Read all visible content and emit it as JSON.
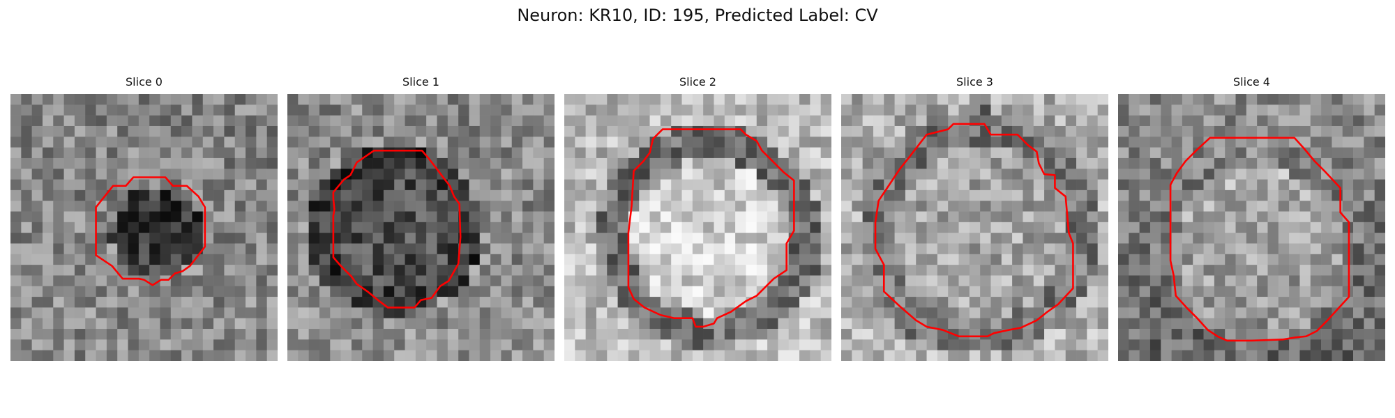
{
  "title": "Neuron: KR10, ID: 195, Predicted Label: CV",
  "contour_color": "#ff0000",
  "panels": [
    {
      "title": "Slice 0",
      "base_gray": 135,
      "disk_gray": 60,
      "ring_gray": 0,
      "contour": [
        [
          12.5,
          7.8
        ],
        [
          14.5,
          7.8
        ],
        [
          15.2,
          8.6
        ],
        [
          16.5,
          8.6
        ],
        [
          17.6,
          9.6
        ],
        [
          18.2,
          10.6
        ],
        [
          18.2,
          14.3
        ],
        [
          17.5,
          15.2
        ],
        [
          16.8,
          16.1
        ],
        [
          16.1,
          16.6
        ],
        [
          15.4,
          16.8
        ],
        [
          14.8,
          17.4
        ],
        [
          14.1,
          17.4
        ],
        [
          13.3,
          17.9
        ],
        [
          12.5,
          17.4
        ],
        [
          12.0,
          17.3
        ],
        [
          10.5,
          17.3
        ],
        [
          9.5,
          16.1
        ],
        [
          8.0,
          15.1
        ],
        [
          8.0,
          10.6
        ],
        [
          9.6,
          8.6
        ],
        [
          10.8,
          8.6
        ],
        [
          11.5,
          7.8
        ]
      ]
    },
    {
      "title": "Slice 1",
      "base_gray": 140,
      "disk_gray": 80,
      "ring_gray": 55,
      "contour": [
        [
          8.1,
          5.3
        ],
        [
          12.6,
          5.3
        ],
        [
          13.2,
          6.0
        ],
        [
          13.9,
          6.9
        ],
        [
          14.5,
          7.7
        ],
        [
          15.2,
          8.6
        ],
        [
          15.6,
          9.6
        ],
        [
          16.1,
          10.3
        ],
        [
          16.2,
          13.4
        ],
        [
          16.0,
          15.9
        ],
        [
          15.1,
          17.5
        ],
        [
          14.3,
          18.0
        ],
        [
          13.5,
          19.1
        ],
        [
          12.5,
          19.3
        ],
        [
          11.9,
          20.0
        ],
        [
          9.4,
          20.0
        ],
        [
          8.6,
          19.4
        ],
        [
          7.5,
          18.5
        ],
        [
          6.5,
          17.8
        ],
        [
          6.0,
          17.1
        ],
        [
          5.0,
          16.1
        ],
        [
          4.3,
          15.3
        ],
        [
          4.3,
          11.4
        ],
        [
          4.4,
          10.8
        ],
        [
          4.3,
          9.8
        ],
        [
          4.3,
          9.2
        ],
        [
          5.3,
          8.0
        ],
        [
          5.9,
          7.6
        ],
        [
          6.5,
          6.4
        ]
      ]
    },
    {
      "title": "Slice 2",
      "base_gray": 185,
      "disk_gray": 205,
      "ring_gray": 110,
      "contour": [
        [
          9.2,
          3.3
        ],
        [
          16.5,
          3.3
        ],
        [
          17.0,
          3.8
        ],
        [
          18.0,
          4.4
        ],
        [
          18.5,
          5.3
        ],
        [
          19.5,
          6.3
        ],
        [
          20.5,
          7.3
        ],
        [
          21.5,
          8.1
        ],
        [
          21.5,
          12.8
        ],
        [
          20.8,
          14.0
        ],
        [
          20.8,
          16.5
        ],
        [
          19.6,
          17.3
        ],
        [
          18.0,
          18.9
        ],
        [
          17.0,
          19.4
        ],
        [
          15.6,
          20.4
        ],
        [
          14.3,
          21.0
        ],
        [
          14.0,
          21.5
        ],
        [
          13.0,
          21.8
        ],
        [
          12.3,
          21.8
        ],
        [
          12.0,
          21.0
        ],
        [
          10.3,
          21.0
        ],
        [
          9.0,
          20.7
        ],
        [
          7.5,
          20.0
        ],
        [
          6.5,
          19.2
        ],
        [
          6.0,
          18.1
        ],
        [
          6.0,
          13.0
        ],
        [
          6.3,
          10.5
        ],
        [
          6.5,
          7.2
        ],
        [
          7.4,
          6.3
        ],
        [
          8.0,
          5.5
        ],
        [
          8.3,
          4.2
        ]
      ]
    },
    {
      "title": "Slice 3",
      "base_gray": 175,
      "disk_gray": 165,
      "ring_gray": 120,
      "contour": [
        [
          8.0,
          3.8
        ],
        [
          10.0,
          3.3
        ],
        [
          10.5,
          2.8
        ],
        [
          13.4,
          2.8
        ],
        [
          14.0,
          3.8
        ],
        [
          16.5,
          3.8
        ],
        [
          17.5,
          4.8
        ],
        [
          18.3,
          5.4
        ],
        [
          18.5,
          6.5
        ],
        [
          19.0,
          7.5
        ],
        [
          20.0,
          7.6
        ],
        [
          20.0,
          8.8
        ],
        [
          21.0,
          9.6
        ],
        [
          21.3,
          13.0
        ],
        [
          21.7,
          14.0
        ],
        [
          21.7,
          18.2
        ],
        [
          20.3,
          19.7
        ],
        [
          19.3,
          20.4
        ],
        [
          18.3,
          21.2
        ],
        [
          16.8,
          21.9
        ],
        [
          15.7,
          22.1
        ],
        [
          14.3,
          22.4
        ],
        [
          13.7,
          22.7
        ],
        [
          11.0,
          22.7
        ],
        [
          9.5,
          22.1
        ],
        [
          8.0,
          21.8
        ],
        [
          7.0,
          21.2
        ],
        [
          5.5,
          19.9
        ],
        [
          4.0,
          18.5
        ],
        [
          4.0,
          16.0
        ],
        [
          3.2,
          14.5
        ],
        [
          3.2,
          12.0
        ],
        [
          3.5,
          10.0
        ],
        [
          4.5,
          8.5
        ],
        [
          5.5,
          7.0
        ],
        [
          6.3,
          6.0
        ]
      ]
    },
    {
      "title": "Slice 4",
      "base_gray": 120,
      "disk_gray": 165,
      "ring_gray": 0,
      "contour": [
        [
          8.6,
          4.1
        ],
        [
          16.5,
          4.1
        ],
        [
          17.4,
          5.1
        ],
        [
          18.4,
          6.3
        ],
        [
          19.4,
          7.3
        ],
        [
          20.8,
          8.8
        ],
        [
          20.8,
          11.1
        ],
        [
          21.6,
          12.0
        ],
        [
          21.6,
          19.0
        ],
        [
          20.5,
          20.2
        ],
        [
          19.5,
          21.3
        ],
        [
          18.6,
          22.2
        ],
        [
          17.6,
          22.7
        ],
        [
          16.6,
          22.8
        ],
        [
          15.4,
          23.0
        ],
        [
          12.5,
          23.1
        ],
        [
          10.2,
          23.1
        ],
        [
          9.3,
          22.7
        ],
        [
          8.4,
          22.1
        ],
        [
          7.4,
          21.0
        ],
        [
          6.4,
          20.0
        ],
        [
          5.4,
          18.9
        ],
        [
          5.2,
          17.0
        ],
        [
          4.9,
          15.6
        ],
        [
          4.9,
          8.5
        ],
        [
          5.5,
          7.4
        ],
        [
          6.3,
          6.3
        ],
        [
          7.4,
          5.2
        ]
      ]
    }
  ]
}
